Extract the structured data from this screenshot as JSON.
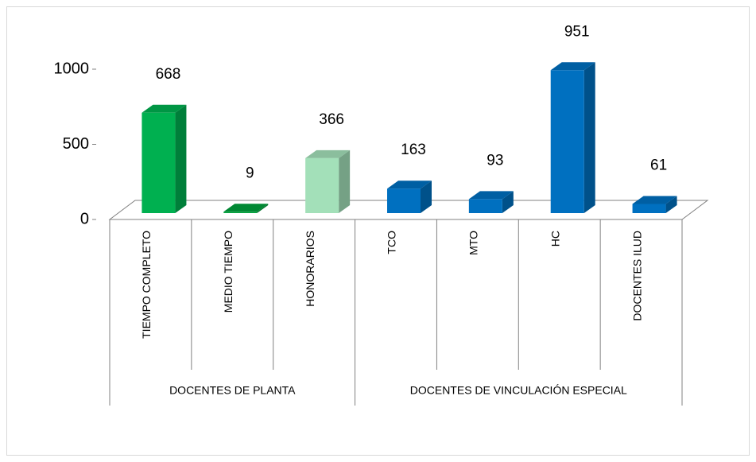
{
  "chart_data": {
    "type": "bar",
    "groups": [
      {
        "name": "DOCENTES DE PLANTA",
        "categories": [
          "TIEMPO COMPLETO",
          "MEDIO TIEMPO",
          "HONORARIOS"
        ],
        "values": [
          668,
          9,
          366
        ],
        "colors": [
          "#00b050",
          "#00a03c",
          "#a3e0b9"
        ]
      },
      {
        "name": "DOCENTES DE VINCULACIÓN ESPECIAL",
        "categories": [
          "TCO",
          "MTO",
          "HC",
          "DOCENTES ILUD"
        ],
        "values": [
          163,
          93,
          951,
          61
        ],
        "colors": [
          "#0070c0",
          "#0070c0",
          "#0070c0",
          "#0070c0"
        ]
      }
    ],
    "ylim": [
      0,
      1000
    ],
    "yticks": [
      0,
      500,
      1000
    ]
  }
}
